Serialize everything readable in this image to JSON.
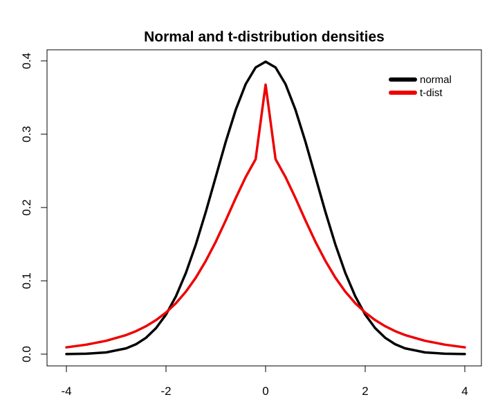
{
  "chart_data": {
    "type": "line",
    "title": "Normal and t-distribution densities",
    "xlabel": "",
    "ylabel": "",
    "xlim": [
      -4,
      4
    ],
    "ylim": [
      0,
      0.4
    ],
    "x_ticks": [
      "-4",
      "-2",
      "0",
      "2",
      "4"
    ],
    "y_ticks": [
      "0.0",
      "0.1",
      "0.2",
      "0.3",
      "0.4"
    ],
    "grid": false,
    "legend_position": "top-right",
    "x": [
      -4,
      -3.6,
      -3.2,
      -2.8,
      -2.6,
      -2.4,
      -2.2,
      -2.0,
      -1.8,
      -1.6,
      -1.4,
      -1.2,
      -1.0,
      -0.8,
      -0.6,
      -0.4,
      -0.2,
      0,
      0.2,
      0.4,
      0.6,
      0.8,
      1.0,
      1.2,
      1.4,
      1.6,
      1.8,
      2.0,
      2.2,
      2.4,
      2.6,
      2.8,
      3.2,
      3.6,
      4
    ],
    "series": [
      {
        "name": "normal",
        "color": "#000000",
        "values": [
          0.0001,
          0.0006,
          0.0024,
          0.0079,
          0.0136,
          0.0224,
          0.0355,
          0.054,
          0.079,
          0.1109,
          0.1497,
          0.1942,
          0.242,
          0.2897,
          0.3332,
          0.3683,
          0.391,
          0.3989,
          0.391,
          0.3683,
          0.3332,
          0.2897,
          0.242,
          0.1942,
          0.1497,
          0.1109,
          0.079,
          0.054,
          0.0355,
          0.0224,
          0.0136,
          0.0079,
          0.0024,
          0.0006,
          0.0001
        ]
      },
      {
        "name": "t-dist",
        "color": "#ee0000",
        "values": [
          0.0092,
          0.0129,
          0.0182,
          0.026,
          0.0314,
          0.0381,
          0.0464,
          0.0567,
          0.0695,
          0.0853,
          0.1044,
          0.1273,
          0.1534,
          0.1825,
          0.2128,
          0.2415,
          0.2659,
          0.3676,
          0.2659,
          0.2415,
          0.2128,
          0.1825,
          0.1534,
          0.1273,
          0.1044,
          0.0853,
          0.0695,
          0.0567,
          0.0464,
          0.0381,
          0.0314,
          0.026,
          0.0182,
          0.0129,
          0.0092
        ]
      }
    ]
  }
}
